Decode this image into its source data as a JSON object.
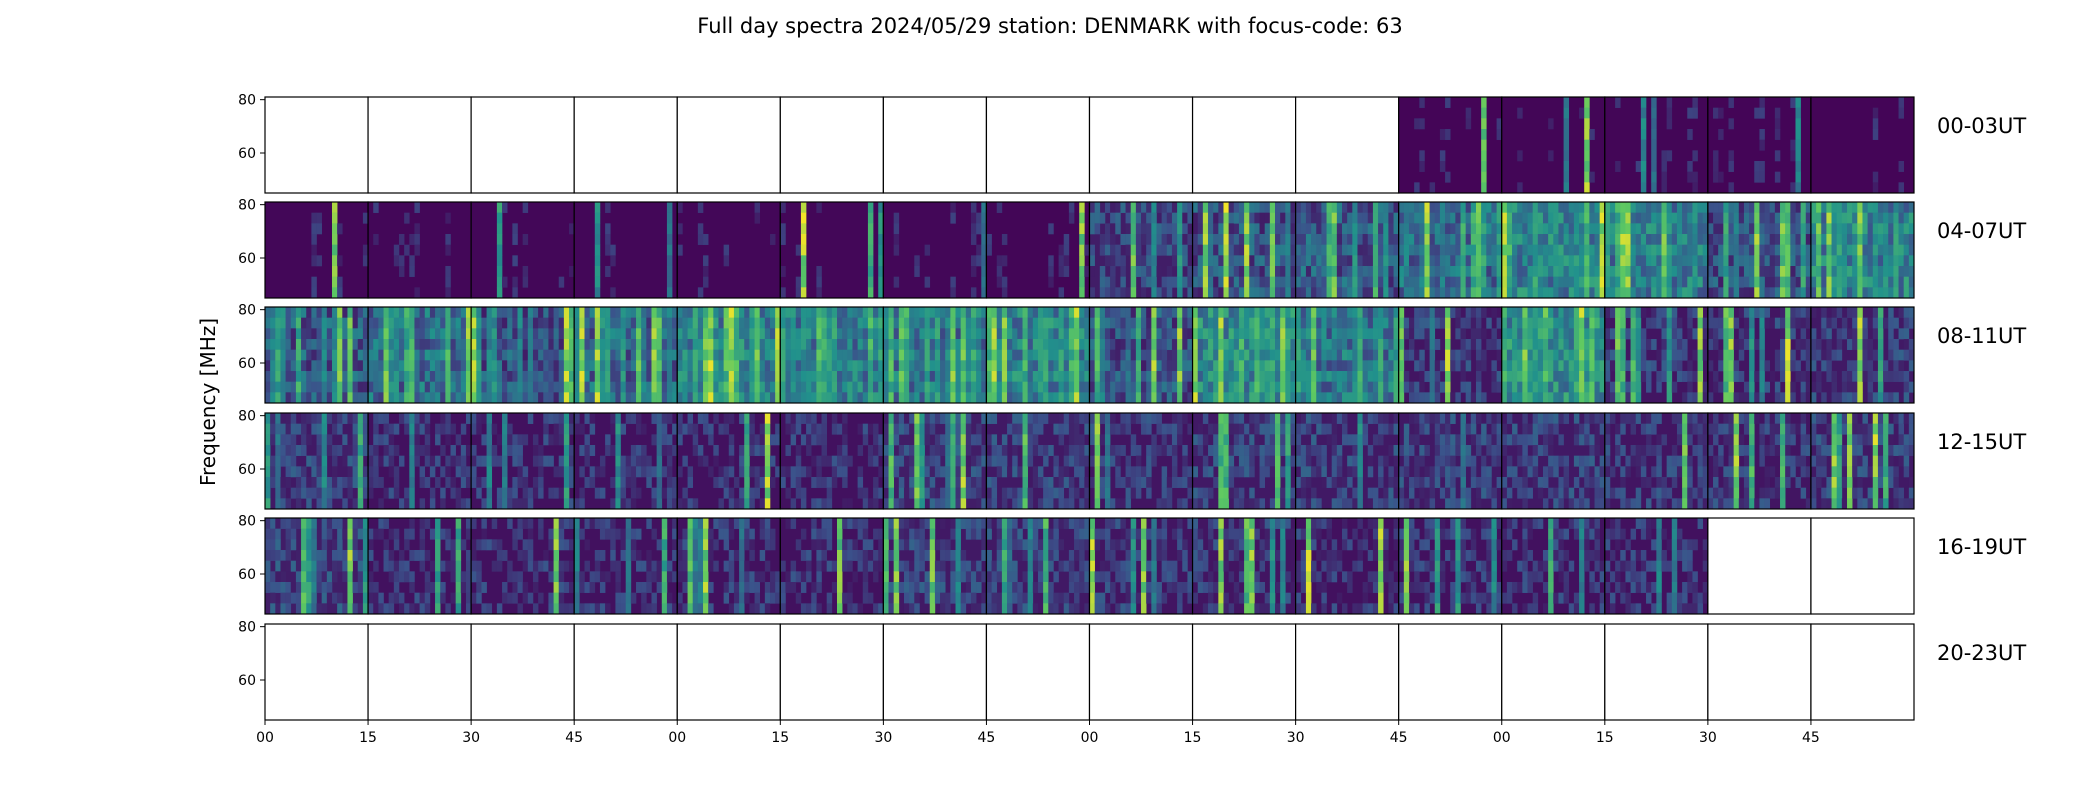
{
  "chart_data": {
    "type": "heatmap",
    "title": "Full day spectra 2024/05/29 station: DENMARK with focus-code: 63",
    "ylabel": "Frequency [MHz]",
    "xlabel": "",
    "ylim": [
      45,
      81
    ],
    "y_ticks": [
      "60",
      "80"
    ],
    "x_ticks": [
      "00",
      "15",
      "30",
      "45",
      "00",
      "15",
      "30",
      "45",
      "00",
      "15",
      "30",
      "45",
      "00",
      "15",
      "30",
      "45"
    ],
    "colormap": [
      "#440154",
      "#3b528b",
      "#21918c",
      "#5ec962",
      "#fde725"
    ],
    "rows": [
      {
        "label": "00-03UT",
        "activity": [
          -1,
          -1,
          -1,
          -1,
          -1,
          -1,
          -1,
          -1,
          -1,
          -1,
          -1,
          0.05,
          0.06,
          0.06,
          0.05,
          0.05
        ]
      },
      {
        "label": "04-07UT",
        "activity": [
          0.07,
          0.07,
          0.07,
          0.07,
          0.07,
          0.07,
          0.08,
          0.06,
          0.35,
          0.5,
          0.55,
          0.7,
          0.85,
          0.8,
          0.45,
          0.85
        ]
      },
      {
        "label": "08-11UT",
        "activity": [
          0.55,
          0.7,
          0.5,
          0.65,
          0.85,
          0.8,
          0.75,
          0.85,
          0.5,
          0.9,
          0.75,
          0.25,
          0.95,
          0.25,
          0.25,
          0.3
        ]
      },
      {
        "label": "12-15UT",
        "activity": [
          0.3,
          0.2,
          0.2,
          0.2,
          0.2,
          0.2,
          0.35,
          0.3,
          0.25,
          0.3,
          0.3,
          0.3,
          0.3,
          0.25,
          0.25,
          0.3
        ]
      },
      {
        "label": "16-19UT",
        "activity": [
          0.35,
          0.2,
          0.2,
          0.2,
          0.2,
          0.2,
          0.3,
          0.3,
          0.25,
          0.25,
          0.2,
          0.2,
          0.2,
          0.2,
          -1,
          -1
        ]
      },
      {
        "label": "20-23UT",
        "activity": [
          -1,
          -1,
          -1,
          -1,
          -1,
          -1,
          -1,
          -1,
          -1,
          -1,
          -1,
          -1,
          -1,
          -1,
          -1,
          -1
        ]
      }
    ]
  }
}
